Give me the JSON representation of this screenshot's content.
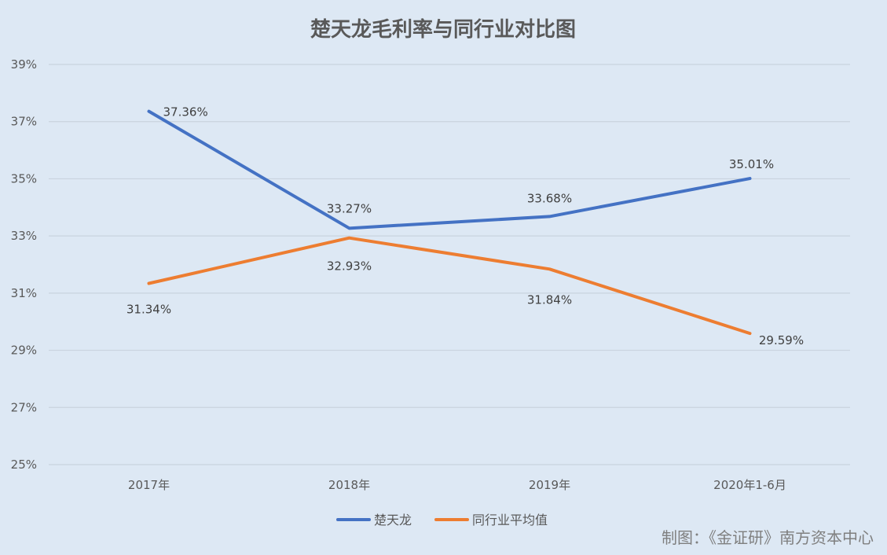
{
  "chart_data": {
    "type": "line",
    "title": "楚天龙毛利率与同行业对比图",
    "categories": [
      "2017年",
      "2018年",
      "2019年",
      "2020年1-6月"
    ],
    "series": [
      {
        "name": "楚天龙",
        "color": "#4472c4",
        "values": [
          37.36,
          33.27,
          33.68,
          35.01
        ],
        "labels": [
          "37.36%",
          "33.27%",
          "33.68%",
          "35.01%"
        ]
      },
      {
        "name": "同行业平均值",
        "color": "#ed7d31",
        "values": [
          31.34,
          32.93,
          31.84,
          29.59
        ],
        "labels": [
          "31.34%",
          "32.93%",
          "31.84%",
          "29.59%"
        ]
      }
    ],
    "y_ticks": [
      25,
      27,
      29,
      31,
      33,
      35,
      37,
      39
    ],
    "y_tick_labels": [
      "25%",
      "27%",
      "29%",
      "31%",
      "33%",
      "35%",
      "37%",
      "39%"
    ],
    "ylim": [
      25,
      39
    ],
    "grid": true,
    "legend_position": "bottom"
  },
  "credit": "制图：《金证研》南方资本中心"
}
